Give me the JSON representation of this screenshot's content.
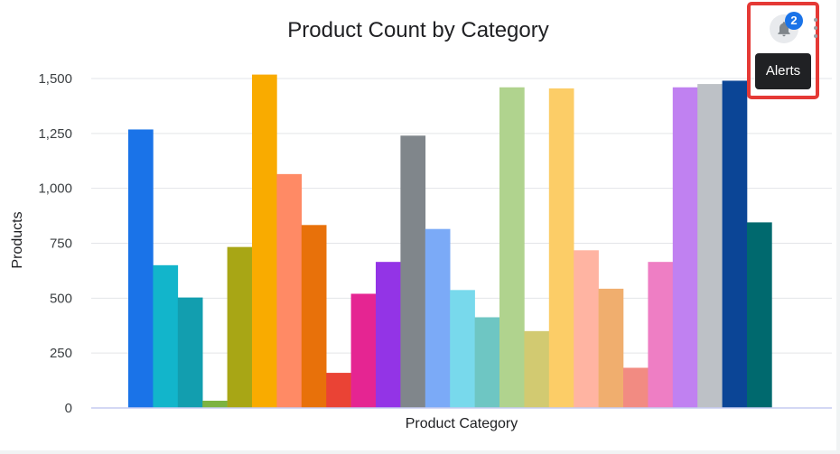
{
  "chart_data": {
    "type": "bar",
    "title": "Product Count by Category",
    "xlabel": "Product Category",
    "ylabel": "Products",
    "ylim": [
      0,
      1500
    ],
    "yticks": [
      0,
      250,
      500,
      750,
      1000,
      1250,
      1500
    ],
    "ytick_labels": [
      "0",
      "250",
      "500",
      "750",
      "1,000",
      "1,250",
      "1,500"
    ],
    "grid": true,
    "legend": "none",
    "values": [
      1268,
      650,
      503,
      33,
      733,
      1518,
      1065,
      833,
      160,
      520,
      665,
      1240,
      815,
      537,
      413,
      1460,
      350,
      1455,
      718,
      543,
      183,
      665,
      1460,
      1475,
      1490,
      845
    ],
    "colors": [
      "#1a73e8",
      "#12b5cb",
      "#129eaf",
      "#7cb342",
      "#a8a615",
      "#f9ab00",
      "#ff8a65",
      "#e8710a",
      "#ea4335",
      "#e52592",
      "#9334e6",
      "#80868b",
      "#7baaf7",
      "#78d9ec",
      "#6ec6c3",
      "#b0d38e",
      "#d2ca71",
      "#fccd67",
      "#ffb4a2",
      "#f0ae6e",
      "#f28b82",
      "#ee7ec4",
      "#c081f1",
      "#bdc1c6",
      "#0b4596",
      "#00696e"
    ]
  },
  "header": {
    "alerts_badge": "2",
    "alerts_tooltip": "Alerts",
    "bell_icon": "bell-icon",
    "more_icon": "more-vert-icon"
  }
}
